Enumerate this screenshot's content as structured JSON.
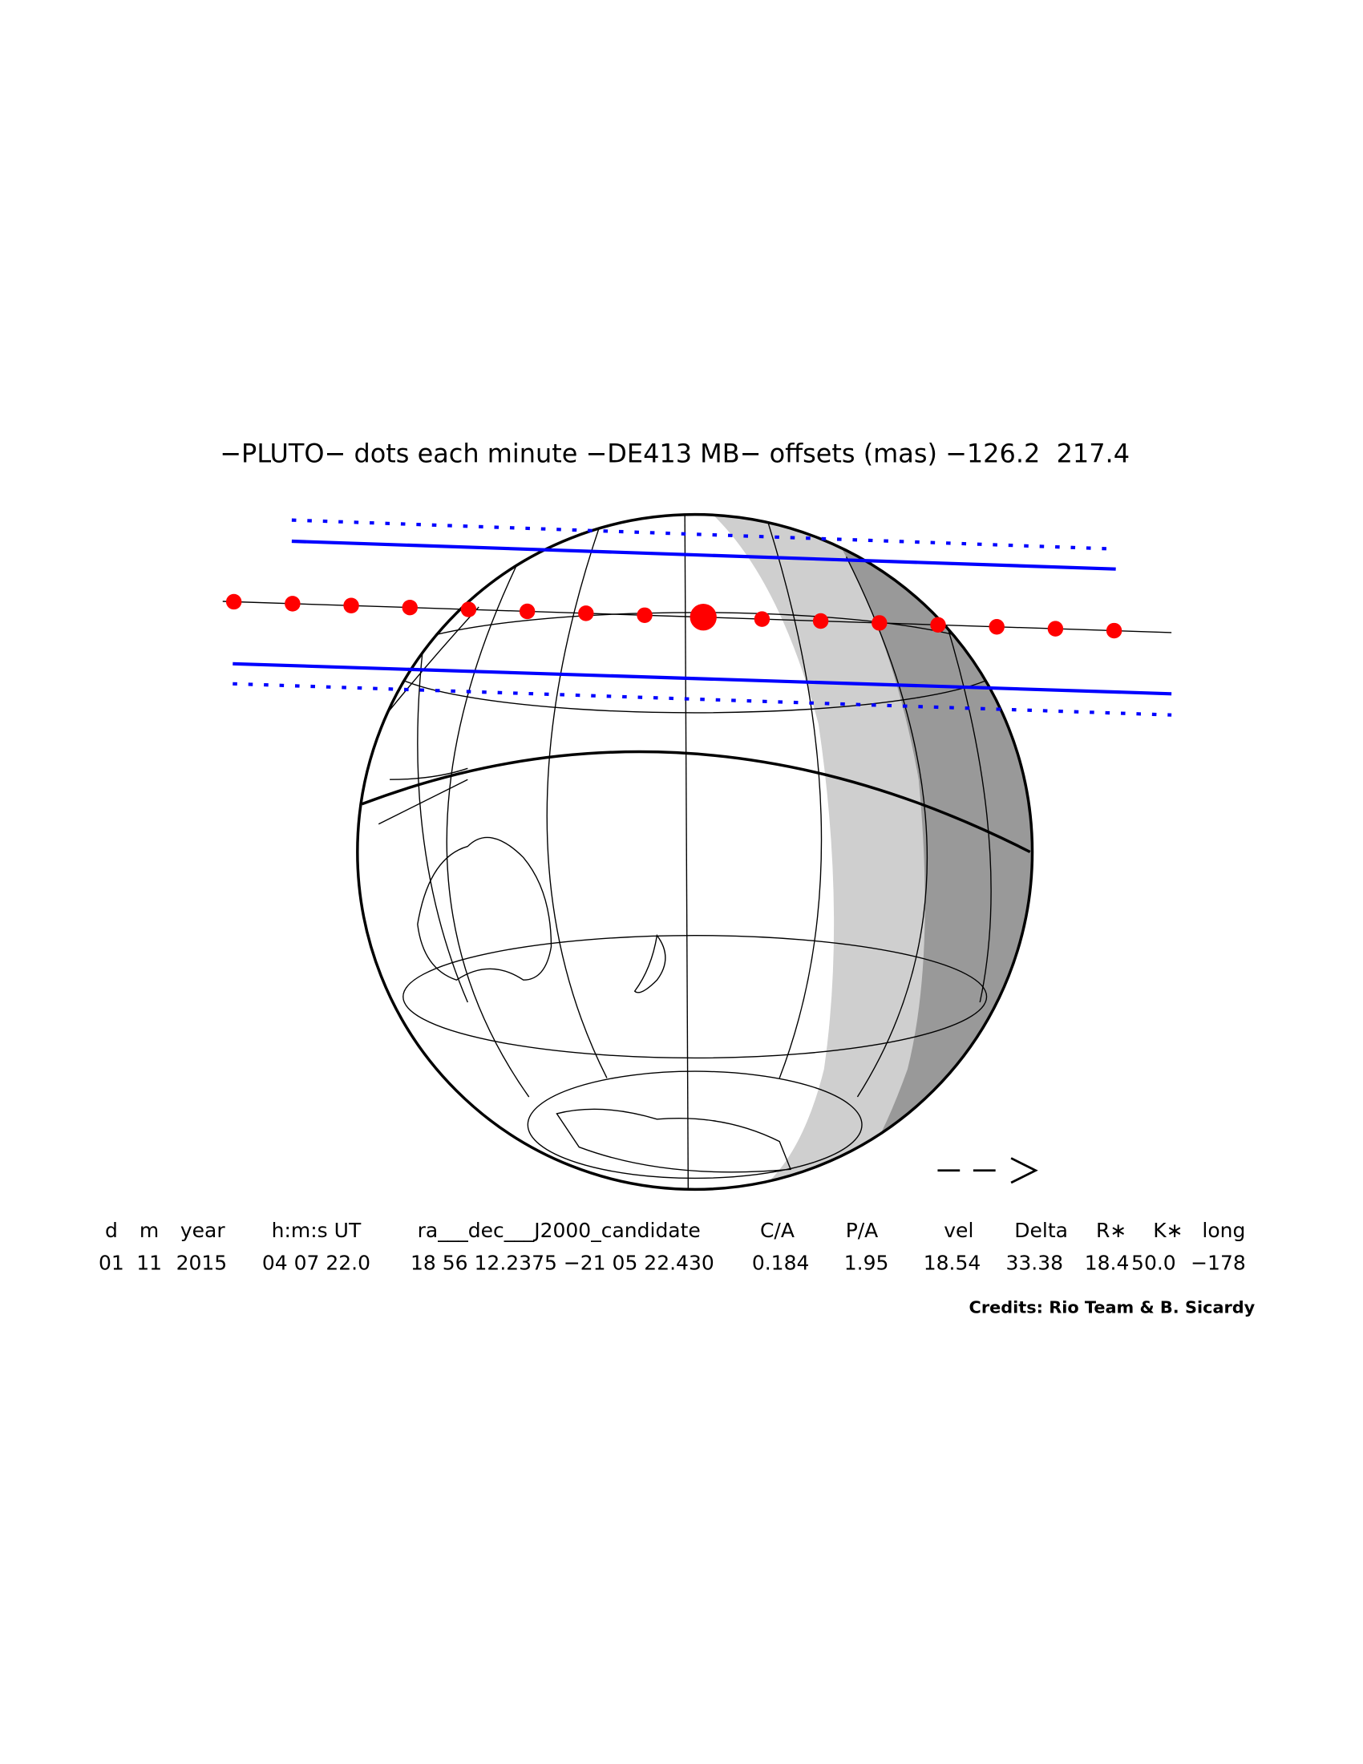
{
  "header": {
    "title": "−PLUTO− dots each minute −DE413 MB− offsets (mas) −126.2  217.4"
  },
  "table": {
    "columns": [
      "d",
      "m",
      "year",
      "h:m:s UT",
      "ra___dec___J2000_candidate",
      "C/A",
      "P/A",
      "vel",
      "Delta",
      "R∗",
      "K∗",
      "long"
    ],
    "values": [
      "01",
      "11",
      "2015",
      "04 07 22.0",
      "18 56 12.2375 −21 05 22.430",
      "0.184",
      "1.95",
      "18.54",
      "33.38",
      "18.4",
      "50.0",
      "−178"
    ]
  },
  "credits": "Credits: Rio Team & B. Sicardy"
}
